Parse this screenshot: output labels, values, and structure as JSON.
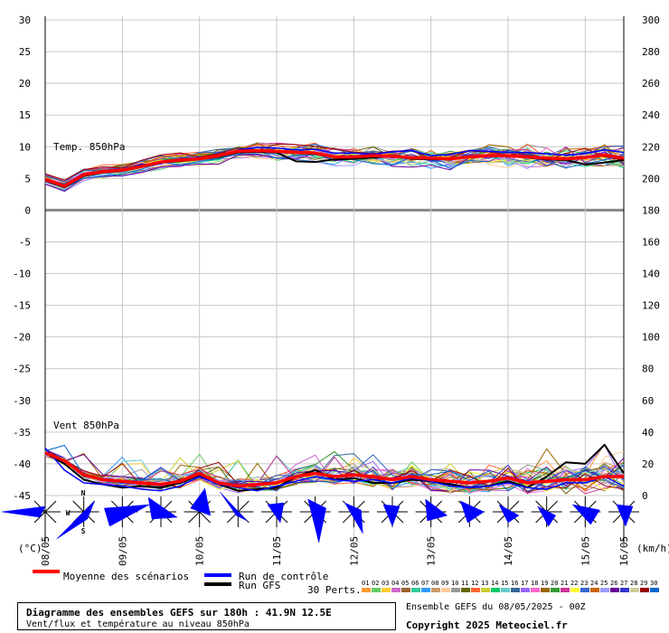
{
  "chart_data": {
    "type": "line",
    "grid": true,
    "temp_axis": {
      "unit_label": "(°C)",
      "min": -45,
      "max": 30,
      "ticks": [
        -45,
        -40,
        -35,
        -30,
        -25,
        -20,
        -15,
        -10,
        -5,
        0,
        5,
        10,
        15,
        20,
        25,
        30
      ]
    },
    "wind_axis": {
      "unit_label": "(km/h)",
      "min": 0,
      "max": 300,
      "ticks": [
        0,
        20,
        40,
        60,
        80,
        100,
        120,
        140,
        160,
        180,
        200,
        220,
        240,
        260,
        280,
        300
      ]
    },
    "x_axis": {
      "hours_max": 180,
      "date_labels": [
        "08/05",
        "09/05",
        "10/05",
        "11/05",
        "12/05",
        "13/05",
        "14/05",
        "15/05",
        "16/05"
      ],
      "date_hours": [
        0,
        24,
        48,
        72,
        96,
        120,
        144,
        168,
        192
      ]
    },
    "panels": [
      {
        "label": "Temp. 850hPa"
      },
      {
        "label": "Vent 850hPa"
      }
    ],
    "temperature": {
      "mean": {
        "hours": [
          0,
          6,
          12,
          18,
          24,
          30,
          36,
          42,
          48,
          54,
          60,
          66,
          72,
          78,
          84,
          90,
          96,
          102,
          108,
          114,
          120,
          126,
          132,
          138,
          144,
          150,
          156,
          162,
          168,
          174,
          180
        ],
        "values": [
          4.8,
          3.8,
          5.6,
          6.1,
          6.3,
          6.9,
          7.6,
          7.9,
          8.1,
          8.6,
          9.3,
          9.4,
          9.3,
          9.1,
          9.0,
          8.4,
          8.4,
          8.6,
          8.5,
          8.3,
          8.2,
          8.1,
          8.4,
          8.6,
          8.6,
          8.4,
          8.2,
          8.1,
          8.3,
          8.7,
          8.2
        ]
      },
      "control": {
        "hours": [
          0,
          6,
          12,
          18,
          24,
          30,
          36,
          42,
          48,
          54,
          60,
          66,
          72,
          78,
          84,
          90,
          96,
          102,
          108,
          114,
          120,
          126,
          132,
          138,
          144,
          150,
          156,
          162,
          168,
          174,
          180
        ],
        "values": [
          4.9,
          4.0,
          5.8,
          6.0,
          6.4,
          7.2,
          7.4,
          8.0,
          8.3,
          8.5,
          9.5,
          9.9,
          9.8,
          9.5,
          9.6,
          9.0,
          9.0,
          8.8,
          9.2,
          9.4,
          8.6,
          8.8,
          9.4,
          9.3,
          9.1,
          9.1,
          8.9,
          8.7,
          8.9,
          9.5,
          9.1
        ]
      },
      "gfs": {
        "hours": [
          0,
          6,
          12,
          18,
          24,
          30,
          36,
          42,
          48,
          54,
          60,
          66,
          72,
          78,
          84,
          90,
          96,
          102,
          108,
          114,
          120,
          126,
          132,
          138,
          144,
          150,
          156,
          162,
          168,
          174,
          180
        ],
        "values": [
          4.7,
          3.6,
          5.4,
          5.9,
          6.2,
          6.8,
          7.5,
          7.7,
          8.0,
          8.4,
          9.1,
          9.2,
          9.1,
          7.7,
          7.6,
          8.0,
          8.1,
          8.3,
          8.5,
          8.1,
          8.0,
          8.1,
          8.4,
          8.6,
          8.5,
          8.3,
          8.0,
          7.9,
          7.2,
          7.5,
          7.9
        ]
      }
    },
    "wind": {
      "mean": {
        "hours": [
          0,
          6,
          12,
          18,
          24,
          30,
          36,
          42,
          48,
          54,
          60,
          66,
          72,
          78,
          84,
          90,
          96,
          102,
          108,
          114,
          120,
          126,
          132,
          138,
          144,
          150,
          156,
          162,
          168,
          174,
          180
        ],
        "values": [
          27,
          22,
          13,
          10,
          9,
          8,
          7,
          9,
          14,
          8,
          6,
          7,
          8,
          12,
          14,
          12,
          13,
          12,
          10,
          12,
          10,
          9,
          8,
          9,
          11,
          8,
          9,
          10,
          10,
          12,
          12
        ]
      },
      "control": {
        "hours": [
          0,
          6,
          12,
          18,
          24,
          30,
          36,
          42,
          48,
          54,
          60,
          66,
          72,
          78,
          84,
          90,
          96,
          102,
          108,
          114,
          120,
          126,
          132,
          138,
          144,
          150,
          156,
          162,
          168,
          174,
          180
        ],
        "values": [
          30,
          16,
          8,
          7,
          6,
          4,
          3,
          6,
          12,
          7,
          5,
          3,
          6,
          9,
          12,
          10,
          9,
          10,
          8,
          11,
          9,
          6,
          5,
          6,
          8,
          5,
          4,
          8,
          8,
          12,
          6
        ]
      },
      "gfs": {
        "hours": [
          0,
          6,
          12,
          18,
          24,
          30,
          36,
          42,
          48,
          54,
          60,
          66,
          72,
          78,
          84,
          90,
          96,
          102,
          108,
          114,
          120,
          126,
          132,
          138,
          144,
          150,
          156,
          162,
          168,
          174,
          180
        ],
        "values": [
          27,
          20,
          10,
          7,
          5,
          6,
          5,
          8,
          13,
          7,
          3,
          4,
          5,
          12,
          16,
          10,
          11,
          8,
          8,
          10,
          9,
          7,
          5,
          6,
          9,
          5,
          12,
          21,
          20,
          32,
          14
        ]
      }
    },
    "members": 30,
    "member_colors": [
      "#ff9933",
      "#66cc66",
      "#ffcc33",
      "#cc66cc",
      "#996633",
      "#33cc99",
      "#3399ff",
      "#cc9966",
      "#ffcc99",
      "#999999",
      "#666600",
      "#ff6633",
      "#cccc33",
      "#00cc66",
      "#66cccc",
      "#336699",
      "#9966ff",
      "#ff66cc",
      "#996600",
      "#339933",
      "#cc3399",
      "#ffff33",
      "#3366cc",
      "#cc6600",
      "#9999ff",
      "#660099",
      "#3333cc",
      "#cccc99",
      "#990000",
      "#0066cc"
    ],
    "wind_arrows": {
      "hours": [
        0,
        12,
        24,
        36,
        48,
        60,
        72,
        84,
        96,
        108,
        120,
        132,
        144,
        156,
        168,
        180
      ]
    },
    "legend": [
      {
        "label": "Moyenne des scénarios",
        "color": "#ff0000"
      },
      {
        "label": "Run de contrôle",
        "color": "#0000ff"
      },
      {
        "label": "Run GFS",
        "color": "#000000"
      }
    ],
    "perts_label": "30 Perts.",
    "member_numbers": [
      "01",
      "02",
      "03",
      "04",
      "05",
      "06",
      "07",
      "08",
      "09",
      "10",
      "11",
      "12",
      "13",
      "14",
      "15",
      "16",
      "17",
      "18",
      "19",
      "20",
      "21",
      "22",
      "23",
      "24",
      "25",
      "26",
      "27",
      "28",
      "29",
      "30"
    ]
  },
  "compass": {
    "n": "N",
    "s": "S",
    "w": "W"
  },
  "footer": {
    "title": "Diagramme des ensembles GEFS sur 180h : 41.9N 12.5E",
    "subtitle": "Vent/flux et température au niveau 850hPa",
    "ensemble_info": "Ensemble GEFS du 08/05/2025 - 00Z",
    "copyright": "Copyright 2025 Meteociel.fr"
  }
}
